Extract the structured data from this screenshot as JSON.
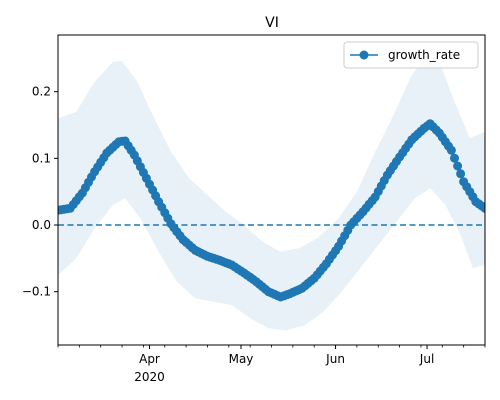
{
  "chart_data": {
    "type": "line",
    "title": "VI",
    "xlabel": "",
    "ylabel": "",
    "x_start": "2020-03-02",
    "x_end": "2020-07-20",
    "ylim": [
      -0.18,
      0.285
    ],
    "yticks": [
      {
        "value": -0.1,
        "label": "−0.1"
      },
      {
        "value": 0.0,
        "label": "0.0"
      },
      {
        "value": 0.1,
        "label": "0.1"
      },
      {
        "value": 0.2,
        "label": "0.2"
      }
    ],
    "xticks_major": [
      {
        "date": "2020-04-01",
        "label": "Apr",
        "sublabel": "2020"
      },
      {
        "date": "2020-05-01",
        "label": "May",
        "sublabel": ""
      },
      {
        "date": "2020-06-01",
        "label": "Jun",
        "sublabel": ""
      },
      {
        "date": "2020-07-01",
        "label": "Jul",
        "sublabel": ""
      }
    ],
    "reference_line": {
      "y": 0.0,
      "style": "dashed",
      "color": "#1f77b4"
    },
    "legend": {
      "position": "top-right",
      "entries": [
        "growth_rate"
      ]
    },
    "series": [
      {
        "name": "growth_rate",
        "color": "#1f77b4",
        "marker": "circle",
        "keypoints": [
          {
            "x": "2020-03-02",
            "y": 0.022
          },
          {
            "x": "2020-03-06",
            "y": 0.025
          },
          {
            "x": "2020-03-10",
            "y": 0.048
          },
          {
            "x": "2020-03-14",
            "y": 0.08
          },
          {
            "x": "2020-03-18",
            "y": 0.108
          },
          {
            "x": "2020-03-22",
            "y": 0.125
          },
          {
            "x": "2020-03-24",
            "y": 0.126
          },
          {
            "x": "2020-03-27",
            "y": 0.105
          },
          {
            "x": "2020-03-31",
            "y": 0.07
          },
          {
            "x": "2020-04-04",
            "y": 0.035
          },
          {
            "x": "2020-04-08",
            "y": 0.002
          },
          {
            "x": "2020-04-12",
            "y": -0.022
          },
          {
            "x": "2020-04-16",
            "y": -0.038
          },
          {
            "x": "2020-04-20",
            "y": -0.047
          },
          {
            "x": "2020-04-24",
            "y": -0.053
          },
          {
            "x": "2020-04-28",
            "y": -0.06
          },
          {
            "x": "2020-05-02",
            "y": -0.072
          },
          {
            "x": "2020-05-06",
            "y": -0.085
          },
          {
            "x": "2020-05-10",
            "y": -0.1
          },
          {
            "x": "2020-05-14",
            "y": -0.108
          },
          {
            "x": "2020-05-17",
            "y": -0.103
          },
          {
            "x": "2020-05-21",
            "y": -0.095
          },
          {
            "x": "2020-05-25",
            "y": -0.08
          },
          {
            "x": "2020-05-29",
            "y": -0.058
          },
          {
            "x": "2020-06-02",
            "y": -0.032
          },
          {
            "x": "2020-06-06",
            "y": 0.0
          },
          {
            "x": "2020-06-10",
            "y": 0.02
          },
          {
            "x": "2020-06-14",
            "y": 0.042
          },
          {
            "x": "2020-06-18",
            "y": 0.075
          },
          {
            "x": "2020-06-22",
            "y": 0.102
          },
          {
            "x": "2020-06-26",
            "y": 0.128
          },
          {
            "x": "2020-06-30",
            "y": 0.145
          },
          {
            "x": "2020-07-02",
            "y": 0.152
          },
          {
            "x": "2020-07-05",
            "y": 0.138
          },
          {
            "x": "2020-07-09",
            "y": 0.112
          },
          {
            "x": "2020-07-13",
            "y": 0.065
          },
          {
            "x": "2020-07-17",
            "y": 0.035
          },
          {
            "x": "2020-07-20",
            "y": 0.025
          }
        ],
        "band": {
          "color": "#1f77b4",
          "opacity": 0.1,
          "upper": [
            {
              "x": "2020-03-02",
              "y": 0.16
            },
            {
              "x": "2020-03-08",
              "y": 0.17
            },
            {
              "x": "2020-03-14",
              "y": 0.215
            },
            {
              "x": "2020-03-20",
              "y": 0.245
            },
            {
              "x": "2020-03-23",
              "y": 0.246
            },
            {
              "x": "2020-03-28",
              "y": 0.215
            },
            {
              "x": "2020-04-02",
              "y": 0.165
            },
            {
              "x": "2020-04-08",
              "y": 0.11
            },
            {
              "x": "2020-04-14",
              "y": 0.07
            },
            {
              "x": "2020-04-20",
              "y": 0.045
            },
            {
              "x": "2020-04-26",
              "y": 0.02
            },
            {
              "x": "2020-05-02",
              "y": 0.0
            },
            {
              "x": "2020-05-08",
              "y": -0.025
            },
            {
              "x": "2020-05-14",
              "y": -0.04
            },
            {
              "x": "2020-05-20",
              "y": -0.035
            },
            {
              "x": "2020-05-26",
              "y": -0.02
            },
            {
              "x": "2020-06-02",
              "y": 0.01
            },
            {
              "x": "2020-06-08",
              "y": 0.05
            },
            {
              "x": "2020-06-14",
              "y": 0.11
            },
            {
              "x": "2020-06-20",
              "y": 0.165
            },
            {
              "x": "2020-06-26",
              "y": 0.225
            },
            {
              "x": "2020-07-01",
              "y": 0.255
            },
            {
              "x": "2020-07-05",
              "y": 0.245
            },
            {
              "x": "2020-07-10",
              "y": 0.185
            },
            {
              "x": "2020-07-15",
              "y": 0.13
            },
            {
              "x": "2020-07-20",
              "y": 0.14
            }
          ],
          "lower": [
            {
              "x": "2020-03-02",
              "y": -0.075
            },
            {
              "x": "2020-03-08",
              "y": -0.05
            },
            {
              "x": "2020-03-14",
              "y": -0.005
            },
            {
              "x": "2020-03-20",
              "y": 0.03
            },
            {
              "x": "2020-03-24",
              "y": 0.04
            },
            {
              "x": "2020-03-29",
              "y": 0.01
            },
            {
              "x": "2020-04-04",
              "y": -0.04
            },
            {
              "x": "2020-04-10",
              "y": -0.085
            },
            {
              "x": "2020-04-16",
              "y": -0.11
            },
            {
              "x": "2020-04-22",
              "y": -0.115
            },
            {
              "x": "2020-04-28",
              "y": -0.12
            },
            {
              "x": "2020-05-04",
              "y": -0.14
            },
            {
              "x": "2020-05-10",
              "y": -0.155
            },
            {
              "x": "2020-05-16",
              "y": -0.158
            },
            {
              "x": "2020-05-22",
              "y": -0.15
            },
            {
              "x": "2020-05-28",
              "y": -0.13
            },
            {
              "x": "2020-06-03",
              "y": -0.1
            },
            {
              "x": "2020-06-09",
              "y": -0.065
            },
            {
              "x": "2020-06-15",
              "y": -0.03
            },
            {
              "x": "2020-06-21",
              "y": 0.005
            },
            {
              "x": "2020-06-27",
              "y": 0.04
            },
            {
              "x": "2020-07-02",
              "y": 0.055
            },
            {
              "x": "2020-07-07",
              "y": 0.03
            },
            {
              "x": "2020-07-12",
              "y": -0.015
            },
            {
              "x": "2020-07-16",
              "y": -0.065
            },
            {
              "x": "2020-07-20",
              "y": -0.06
            }
          ]
        }
      }
    ]
  }
}
